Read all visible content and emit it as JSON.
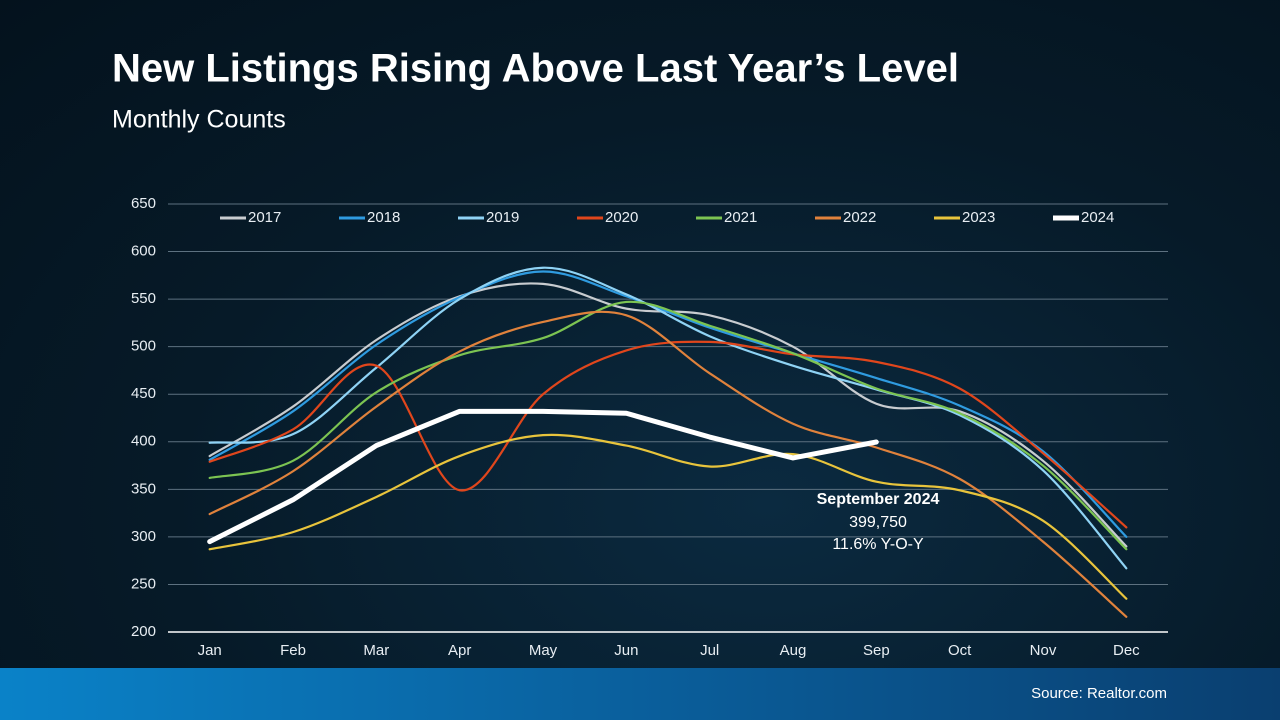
{
  "chart_data": {
    "type": "line",
    "title": "New Listings Rising Above Last Year’s Level",
    "subtitle": "Monthly Counts",
    "source": "Source: Realtor.com",
    "categories": [
      "Jan",
      "Feb",
      "Mar",
      "Apr",
      "May",
      "Jun",
      "Jul",
      "Aug",
      "Sep",
      "Oct",
      "Nov",
      "Dec"
    ],
    "ylim": [
      200,
      650
    ],
    "yticks": [
      200,
      250,
      300,
      350,
      400,
      450,
      500,
      550,
      600,
      650
    ],
    "grid": true,
    "legend": "top",
    "series": [
      {
        "name": "2017",
        "color": "#c8ccd0",
        "smooth": true,
        "values": [
          385,
          437,
          507,
          553,
          566,
          540,
          533,
          500,
          440,
          432,
          380,
          290
        ]
      },
      {
        "name": "2018",
        "color": "#2f9be0",
        "smooth": true,
        "values": [
          381,
          432,
          502,
          552,
          579,
          553,
          520,
          493,
          467,
          438,
          390,
          300
        ]
      },
      {
        "name": "2019",
        "color": "#8fd3f5",
        "smooth": true,
        "values": [
          399,
          408,
          478,
          550,
          583,
          555,
          511,
          480,
          455,
          428,
          370,
          267
        ]
      },
      {
        "name": "2020",
        "color": "#e0461c",
        "smooth": true,
        "values": [
          379,
          413,
          480,
          349,
          450,
          496,
          505,
          492,
          484,
          456,
          388,
          310
        ]
      },
      {
        "name": "2021",
        "color": "#7cc452",
        "smooth": true,
        "values": [
          362,
          380,
          452,
          491,
          509,
          547,
          522,
          493,
          456,
          430,
          375,
          287
        ]
      },
      {
        "name": "2022",
        "color": "#e0823c",
        "smooth": true,
        "values": [
          324,
          369,
          437,
          495,
          526,
          533,
          472,
          419,
          394,
          361,
          295,
          216
        ]
      },
      {
        "name": "2023",
        "color": "#e8c43c",
        "smooth": true,
        "values": [
          287,
          305,
          342,
          385,
          407,
          396,
          374,
          387,
          358,
          349,
          317,
          235
        ]
      },
      {
        "name": "2024",
        "color": "#ffffff",
        "smooth": false,
        "width": 5,
        "values": [
          295,
          339,
          396,
          432,
          432,
          430,
          405,
          383,
          399.75,
          null,
          null,
          null
        ]
      }
    ],
    "annotation": {
      "title": "September 2024",
      "value": "399,750",
      "change": "11.6% Y-O-Y"
    }
  }
}
